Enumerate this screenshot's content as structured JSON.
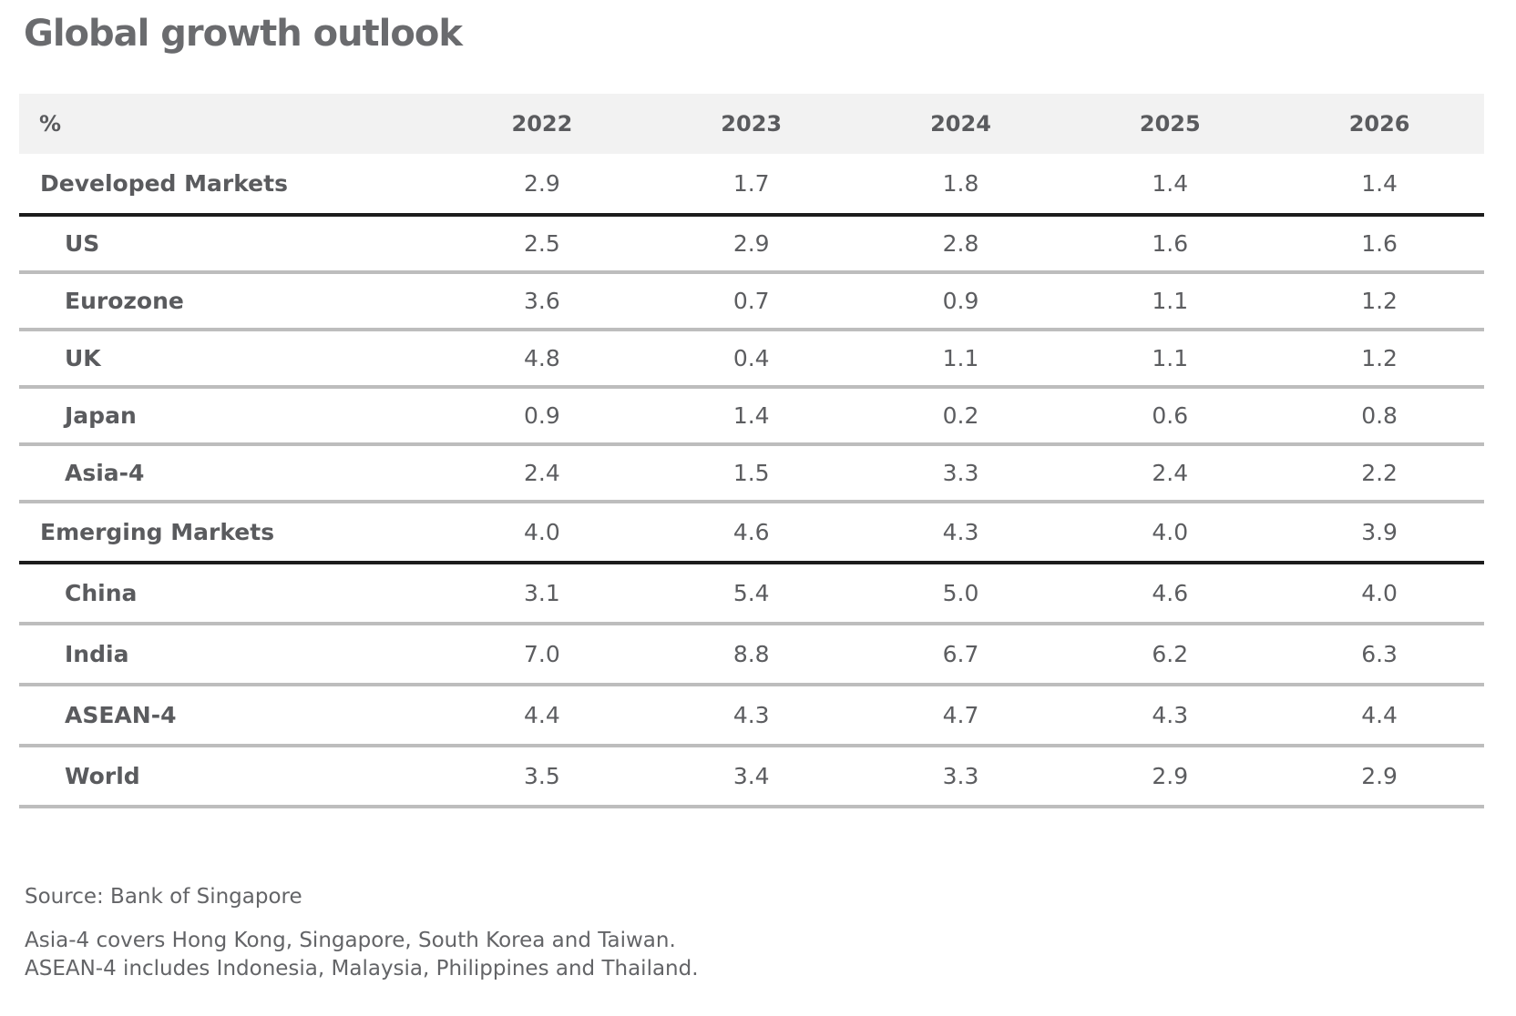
{
  "title": "Global growth outlook",
  "chart_data": {
    "type": "table",
    "title": "Global growth outlook",
    "unit_label": "%",
    "columns": [
      "2022",
      "2023",
      "2024",
      "2025",
      "2026"
    ],
    "rows": [
      {
        "label": "Developed Markets",
        "level": "region",
        "values": [
          "2.9",
          "1.7",
          "1.8",
          "1.4",
          "1.4"
        ]
      },
      {
        "label": "US",
        "level": "country",
        "values": [
          "2.5",
          "2.9",
          "2.8",
          "1.6",
          "1.6"
        ]
      },
      {
        "label": "Eurozone",
        "level": "country",
        "values": [
          "3.6",
          "0.7",
          "0.9",
          "1.1",
          "1.2"
        ]
      },
      {
        "label": "UK",
        "level": "country",
        "values": [
          "4.8",
          "0.4",
          "1.1",
          "1.1",
          "1.2"
        ]
      },
      {
        "label": "Japan",
        "level": "country",
        "values": [
          "0.9",
          "1.4",
          "0.2",
          "0.6",
          "0.8"
        ]
      },
      {
        "label": "Asia-4",
        "level": "country",
        "values": [
          "2.4",
          "1.5",
          "3.3",
          "2.4",
          "2.2"
        ]
      },
      {
        "label": "Emerging Markets",
        "level": "region",
        "values": [
          "4.0",
          "4.6",
          "4.3",
          "4.0",
          "3.9"
        ]
      },
      {
        "label": "China",
        "level": "country",
        "values": [
          "3.1",
          "5.4",
          "5.0",
          "4.6",
          "4.0"
        ]
      },
      {
        "label": "India",
        "level": "country",
        "values": [
          "7.0",
          "8.8",
          "6.7",
          "6.2",
          "6.3"
        ]
      },
      {
        "label": "ASEAN-4",
        "level": "country",
        "values": [
          "4.4",
          "4.3",
          "4.7",
          "4.3",
          "4.4"
        ]
      },
      {
        "label": "World",
        "level": "country",
        "values": [
          "3.5",
          "3.4",
          "3.3",
          "2.9",
          "2.9"
        ]
      }
    ]
  },
  "notes": {
    "source": "Source: Bank of Singapore",
    "line1": "Asia-4 covers Hong Kong, Singapore, South Korea and Taiwan.",
    "line2": "ASEAN-4 includes Indonesia, Malaysia, Philippines and Thailand."
  },
  "colors": {
    "header_background": "#f2f2f2",
    "region_divider": "#1c1c1c",
    "row_divider": "#bdbdbd",
    "text": "#5a5b5e"
  }
}
